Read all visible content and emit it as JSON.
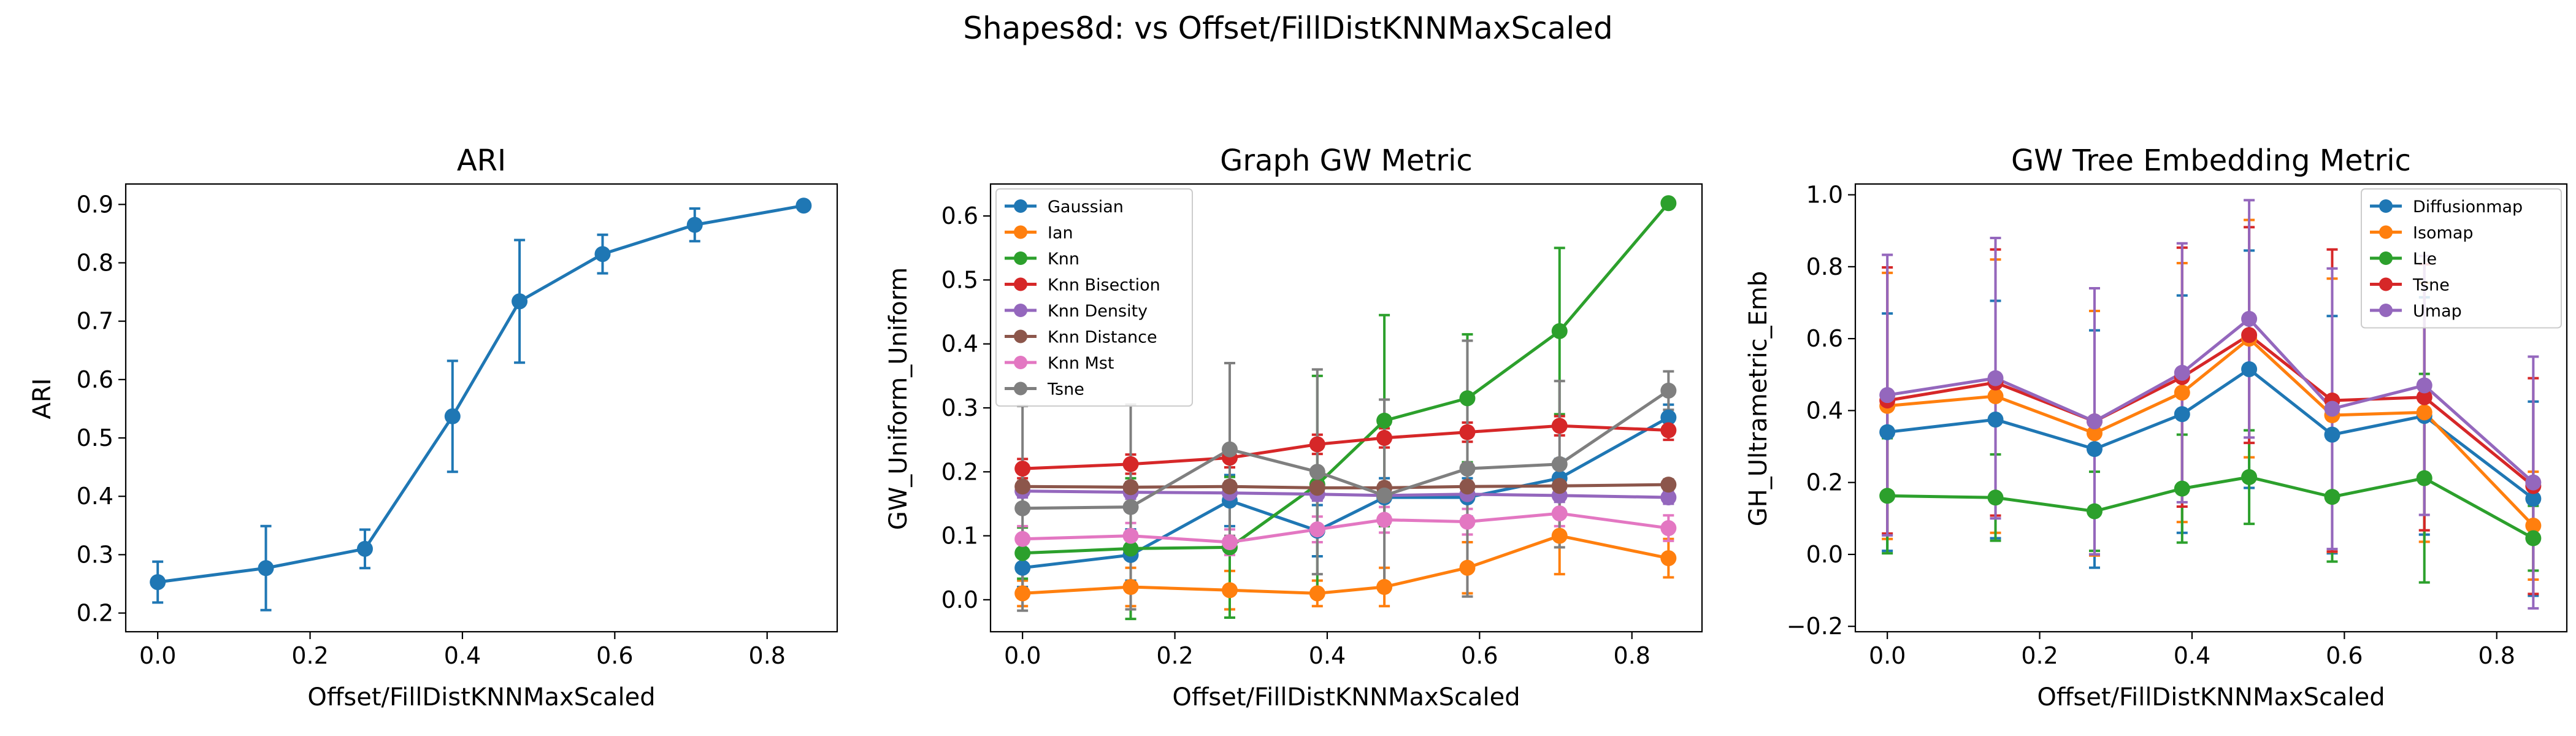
{
  "figure": {
    "suptitle": "Shapes8d: vs Offset/FillDistKNNMaxScaled"
  },
  "chart_data": [
    {
      "type": "line",
      "title": "ARI",
      "xlabel": "Offset/FillDistKNNMaxScaled",
      "ylabel": "ARI",
      "xlim": [
        -0.042,
        0.892
      ],
      "ylim": [
        0.168,
        0.935
      ],
      "xticks": [
        0.0,
        0.2,
        0.4,
        0.6,
        0.8
      ],
      "xtick_labels": [
        "0.0",
        "0.2",
        "0.4",
        "0.6",
        "0.8"
      ],
      "yticks": [
        0.2,
        0.3,
        0.4,
        0.5,
        0.6,
        0.7,
        0.8,
        0.9
      ],
      "ytick_labels": [
        "0.2",
        "0.3",
        "0.4",
        "0.5",
        "0.6",
        "0.7",
        "0.8",
        "0.9"
      ],
      "x": [
        0.0,
        0.142,
        0.272,
        0.387,
        0.475,
        0.584,
        0.705,
        0.848
      ],
      "legend": null,
      "series": [
        {
          "color": "#1f77b4",
          "values": [
            0.253,
            0.277,
            0.31,
            0.537,
            0.734,
            0.815,
            0.865,
            0.898
          ],
          "errors": [
            0.035,
            0.072,
            0.033,
            0.095,
            0.105,
            0.033,
            0.028,
            0.0
          ]
        }
      ]
    },
    {
      "type": "line",
      "title": "Graph GW Metric",
      "xlabel": "Offset/FillDistKNNMaxScaled",
      "ylabel": "GW_Uniform_Uniform",
      "xlim": [
        -0.042,
        0.892
      ],
      "ylim": [
        -0.05,
        0.65
      ],
      "xticks": [
        0.0,
        0.2,
        0.4,
        0.6,
        0.8
      ],
      "xtick_labels": [
        "0.0",
        "0.2",
        "0.4",
        "0.6",
        "0.8"
      ],
      "yticks": [
        0.0,
        0.1,
        0.2,
        0.3,
        0.4,
        0.5,
        0.6
      ],
      "ytick_labels": [
        "0.0",
        "0.1",
        "0.2",
        "0.3",
        "0.4",
        "0.5",
        "0.6"
      ],
      "x": [
        0.0,
        0.142,
        0.272,
        0.387,
        0.475,
        0.584,
        0.705,
        0.848
      ],
      "legend": "top-left",
      "series": [
        {
          "name": "Gaussian",
          "color": "#1f77b4",
          "values": [
            0.05,
            0.07,
            0.155,
            0.108,
            0.16,
            0.16,
            0.19,
            0.285
          ],
          "errors": [
            0.03,
            0.04,
            0.04,
            0.04,
            0.03,
            0.03,
            0.03,
            0.02
          ]
        },
        {
          "name": "Ian",
          "color": "#ff7f0e",
          "values": [
            0.01,
            0.02,
            0.015,
            0.01,
            0.02,
            0.05,
            0.1,
            0.065
          ],
          "errors": [
            0.02,
            0.03,
            0.03,
            0.02,
            0.03,
            0.04,
            0.06,
            0.03
          ]
        },
        {
          "name": "Knn",
          "color": "#2ca02c",
          "values": [
            0.073,
            0.08,
            0.082,
            0.18,
            0.28,
            0.315,
            0.42,
            0.62
          ],
          "errors": [
            0.04,
            0.11,
            0.11,
            0.17,
            0.165,
            0.1,
            0.13,
            0.0
          ]
        },
        {
          "name": "Knn Bisection",
          "color": "#d62728",
          "values": [
            0.205,
            0.212,
            0.222,
            0.243,
            0.253,
            0.262,
            0.272,
            0.265
          ],
          "errors": [
            0.015,
            0.015,
            0.015,
            0.015,
            0.015,
            0.015,
            0.015,
            0.015
          ]
        },
        {
          "name": "Knn Density",
          "color": "#9467bd",
          "values": [
            0.17,
            0.168,
            0.167,
            0.165,
            0.163,
            0.165,
            0.163,
            0.16
          ],
          "errors": [
            0.01,
            0.01,
            0.01,
            0.01,
            0.01,
            0.01,
            0.01,
            0.01
          ]
        },
        {
          "name": "Knn Distance",
          "color": "#8c564b",
          "values": [
            0.177,
            0.176,
            0.177,
            0.175,
            0.175,
            0.177,
            0.178,
            0.18
          ],
          "errors": [
            0.008,
            0.008,
            0.008,
            0.008,
            0.008,
            0.008,
            0.008,
            0.008
          ]
        },
        {
          "name": "Knn Mst",
          "color": "#e377c2",
          "values": [
            0.095,
            0.1,
            0.09,
            0.11,
            0.125,
            0.122,
            0.135,
            0.112
          ],
          "errors": [
            0.02,
            0.02,
            0.02,
            0.02,
            0.02,
            0.02,
            0.02,
            0.02
          ]
        },
        {
          "name": "Tsne",
          "color": "#7f7f7f",
          "values": [
            0.143,
            0.145,
            0.235,
            0.2,
            0.163,
            0.205,
            0.212,
            0.327
          ],
          "errors": [
            0.16,
            0.16,
            0.135,
            0.16,
            0.15,
            0.2,
            0.13,
            0.03
          ]
        }
      ]
    },
    {
      "type": "line",
      "title": "GW Tree Embedding Metric",
      "xlabel": "Offset/FillDistKNNMaxScaled",
      "ylabel": "GH_Ultrametric_Emb",
      "xlim": [
        -0.042,
        0.892
      ],
      "ylim": [
        -0.215,
        1.03
      ],
      "xticks": [
        0.0,
        0.2,
        0.4,
        0.6,
        0.8
      ],
      "xtick_labels": [
        "0.0",
        "0.2",
        "0.4",
        "0.6",
        "0.8"
      ],
      "yticks": [
        -0.2,
        0.0,
        0.2,
        0.4,
        0.6,
        0.8,
        1.0
      ],
      "ytick_labels": [
        "−0.2",
        "0.0",
        "0.2",
        "0.4",
        "0.6",
        "0.8",
        "1.0"
      ],
      "x": [
        0.0,
        0.142,
        0.272,
        0.387,
        0.475,
        0.584,
        0.705,
        0.848
      ],
      "legend": "top-right",
      "series": [
        {
          "name": "Diffusionmap",
          "color": "#1f77b4",
          "values": [
            0.34,
            0.375,
            0.293,
            0.39,
            0.515,
            0.333,
            0.385,
            0.155
          ],
          "errors": [
            0.33,
            0.33,
            0.33,
            0.33,
            0.33,
            0.33,
            0.33,
            0.27
          ]
        },
        {
          "name": "Isomap",
          "color": "#ff7f0e",
          "values": [
            0.413,
            0.44,
            0.337,
            0.45,
            0.6,
            0.387,
            0.395,
            0.08
          ],
          "errors": [
            0.37,
            0.38,
            0.34,
            0.36,
            0.33,
            0.38,
            0.36,
            0.15
          ]
        },
        {
          "name": "Lle",
          "color": "#2ca02c",
          "values": [
            0.163,
            0.158,
            0.12,
            0.183,
            0.215,
            0.16,
            0.212,
            0.045
          ],
          "errors": [
            0.16,
            0.12,
            0.11,
            0.15,
            0.13,
            0.18,
            0.29,
            0.09
          ]
        },
        {
          "name": "Tsne",
          "color": "#d62728",
          "values": [
            0.428,
            0.478,
            0.37,
            0.493,
            0.61,
            0.428,
            0.437,
            0.19
          ],
          "errors": [
            0.37,
            0.37,
            0.37,
            0.36,
            0.3,
            0.42,
            0.37,
            0.3
          ]
        },
        {
          "name": "Umap",
          "color": "#9467bd",
          "values": [
            0.443,
            0.49,
            0.37,
            0.505,
            0.655,
            0.405,
            0.47,
            0.2
          ],
          "errors": [
            0.39,
            0.39,
            0.37,
            0.36,
            0.33,
            0.39,
            0.36,
            0.35
          ]
        }
      ]
    }
  ]
}
